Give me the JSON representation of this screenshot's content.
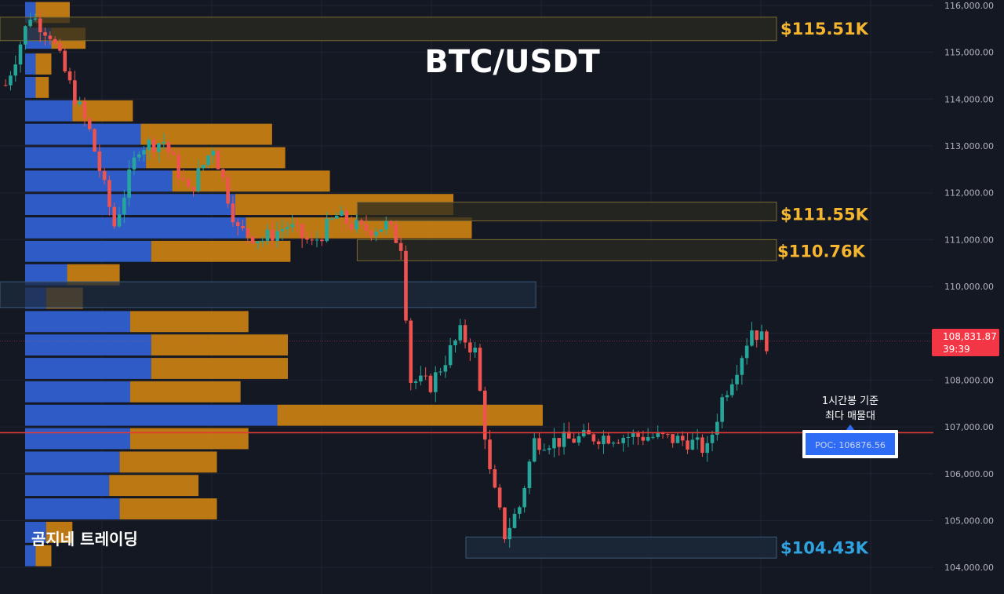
{
  "chart_title": "BTC/USDT",
  "watermark": "곰지네 트레이딩",
  "annotation": [
    "1시간봉 기준",
    "최다 매물대"
  ],
  "poc_label": "POC: 106876.56",
  "last_price_badge": {
    "price": "108,831.87",
    "countdown": "39:39"
  },
  "colors": {
    "background": "#141823",
    "grid": "#1f2433",
    "up": "#26a69a",
    "down": "#ef5350",
    "vp_blue": "#2f5fd0",
    "vp_orange": "#d98a10",
    "level_gold": "#f5b52e",
    "level_blue": "#2ea3e0",
    "poc_line": "#e53935"
  },
  "chart_data": {
    "type": "candlestick",
    "title": "BTC/USDT",
    "xlabel": "",
    "ylabel": "",
    "ylim": [
      103600,
      116000
    ],
    "y_ticks": [
      "104,000.00",
      "105,000.00",
      "106,000.00",
      "107,000.00",
      "108,000.00",
      "109,000.00",
      "110,000.00",
      "111,000.00",
      "112,000.00",
      "113,000.00",
      "114,000.00",
      "115,000.00",
      "116,000.00"
    ],
    "last_price": 108831.87,
    "poc": 106876.56,
    "levels": [
      {
        "label": "$115.51K",
        "value": 115510,
        "color": "gold"
      },
      {
        "label": "$111.55K",
        "value": 111550,
        "color": "gold"
      },
      {
        "label": "$110.76K",
        "value": 110760,
        "color": "gold"
      },
      {
        "label": "$104.43K",
        "value": 104430,
        "color": "blue"
      }
    ],
    "zones": [
      {
        "top": 115750,
        "bottom": 115250,
        "x_start": 0.0,
        "x_end": 1.0
      },
      {
        "top": 111800,
        "bottom": 111400,
        "x_start": 0.46,
        "x_end": 1.0
      },
      {
        "top": 111000,
        "bottom": 110550,
        "x_start": 0.46,
        "x_end": 1.0
      },
      {
        "top": 110100,
        "bottom": 109550,
        "x_start": 0.0,
        "x_end": 0.69
      },
      {
        "top": 104650,
        "bottom": 104200,
        "x_start": 0.6,
        "x_end": 1.0
      }
    ],
    "volume_profile": [
      {
        "price": 115850,
        "buy": 0.02,
        "sell": 0.11
      },
      {
        "price": 115300,
        "buy": 0.05,
        "sell": 0.08
      },
      {
        "price": 114750,
        "buy": 0.02,
        "sell": 0.04
      },
      {
        "price": 114250,
        "buy": 0.02,
        "sell": 0.03
      },
      {
        "price": 113750,
        "buy": 0.09,
        "sell": 0.14
      },
      {
        "price": 113250,
        "buy": 0.22,
        "sell": 0.28
      },
      {
        "price": 112750,
        "buy": 0.23,
        "sell": 0.3
      },
      {
        "price": 112250,
        "buy": 0.28,
        "sell": 0.32
      },
      {
        "price": 111750,
        "buy": 0.4,
        "sell": 0.43
      },
      {
        "price": 111250,
        "buy": 0.42,
        "sell": 0.44
      },
      {
        "price": 110750,
        "buy": 0.24,
        "sell": 0.29
      },
      {
        "price": 110250,
        "buy": 0.08,
        "sell": 0.12
      },
      {
        "price": 109750,
        "buy": 0.04,
        "sell": 0.1
      },
      {
        "price": 109250,
        "buy": 0.2,
        "sell": 0.25
      },
      {
        "price": 108750,
        "buy": 0.24,
        "sell": 0.28
      },
      {
        "price": 108250,
        "buy": 0.24,
        "sell": 0.28
      },
      {
        "price": 107750,
        "buy": 0.2,
        "sell": 0.22
      },
      {
        "price": 107250,
        "buy": 0.48,
        "sell": 0.53
      },
      {
        "price": 106750,
        "buy": 0.2,
        "sell": 0.25
      },
      {
        "price": 106250,
        "buy": 0.18,
        "sell": 0.19
      },
      {
        "price": 105750,
        "buy": 0.16,
        "sell": 0.18
      },
      {
        "price": 105250,
        "buy": 0.18,
        "sell": 0.19
      },
      {
        "price": 104750,
        "buy": 0.04,
        "sell": 0.06
      },
      {
        "price": 104250,
        "buy": 0.02,
        "sell": 0.04
      }
    ],
    "anchors": [
      [
        0,
        114300
      ],
      [
        5,
        115800
      ],
      [
        9,
        115400
      ],
      [
        13,
        114300
      ],
      [
        17,
        113300
      ],
      [
        22,
        111300
      ],
      [
        27,
        113000
      ],
      [
        32,
        113100
      ],
      [
        37,
        112000
      ],
      [
        42,
        113000
      ],
      [
        47,
        111200
      ],
      [
        52,
        111000
      ],
      [
        57,
        111300
      ],
      [
        62,
        110900
      ],
      [
        67,
        111500
      ],
      [
        72,
        111200
      ],
      [
        77,
        111300
      ],
      [
        80,
        110900
      ],
      [
        82,
        108000
      ],
      [
        86,
        107900
      ],
      [
        92,
        109000
      ],
      [
        95,
        108600
      ],
      [
        98,
        106000
      ],
      [
        101,
        104700
      ],
      [
        104,
        105300
      ],
      [
        107,
        106700
      ],
      [
        112,
        106700
      ],
      [
        120,
        106800
      ],
      [
        130,
        106800
      ],
      [
        138,
        106700
      ],
      [
        142,
        106500
      ],
      [
        145,
        107600
      ],
      [
        148,
        108300
      ],
      [
        151,
        109100
      ],
      [
        154,
        108800
      ]
    ]
  }
}
